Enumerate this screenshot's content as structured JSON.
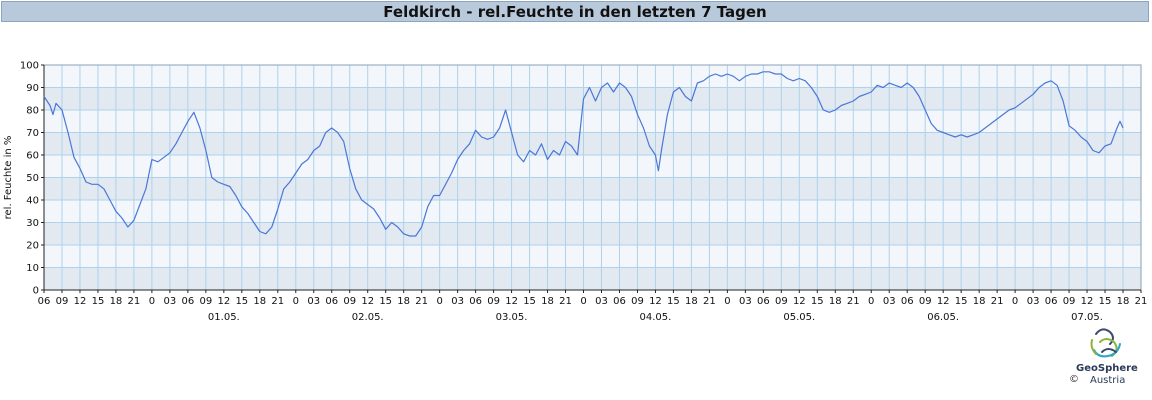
{
  "header": {
    "title": "Feldkirch - rel.Feuchte in den letzten 7 Tagen"
  },
  "branding": {
    "name": "GeoSphere",
    "sub": "Austria",
    "copyright": "©"
  },
  "chart_data": {
    "type": "line",
    "title": "Feldkirch - rel.Feuchte in den letzten 7 Tagen",
    "ylabel": "rel. Feuchte in %",
    "ylim": [
      0,
      100
    ],
    "yticks": [
      0,
      10,
      20,
      30,
      40,
      50,
      60,
      70,
      80,
      90,
      100
    ],
    "x_hours": [
      0,
      3,
      6,
      9,
      12,
      15,
      18,
      21
    ],
    "x_start": "30.04. 06:00",
    "x_end": "07.05. 21:00",
    "day_labels": [
      "01.05.",
      "02.05.",
      "03.05.",
      "04.05.",
      "05.05.",
      "06.05.",
      "07.05."
    ],
    "colors": {
      "line": "#4a78d8",
      "band_dark": "#e3e9f1",
      "band_light": "#f3f6fa",
      "grid": "#aed2ec"
    },
    "grid": true,
    "series": [
      {
        "values": [
          [
            "30.04. 06:00",
            86
          ],
          [
            "30.04. 07:00",
            82
          ],
          [
            "30.04. 07:30",
            78
          ],
          [
            "30.04. 08:00",
            83
          ],
          [
            "30.04. 09:00",
            80
          ],
          [
            "30.04. 10:00",
            70
          ],
          [
            "30.04. 11:00",
            59
          ],
          [
            "30.04. 12:00",
            54
          ],
          [
            "30.04. 13:00",
            48
          ],
          [
            "30.04. 14:00",
            47
          ],
          [
            "30.04. 15:00",
            47
          ],
          [
            "30.04. 16:00",
            45
          ],
          [
            "30.04. 17:00",
            40
          ],
          [
            "30.04. 18:00",
            35
          ],
          [
            "30.04. 19:00",
            32
          ],
          [
            "30.04. 20:00",
            28
          ],
          [
            "30.04. 21:00",
            31
          ],
          [
            "30.04. 22:00",
            38
          ],
          [
            "30.04. 23:00",
            45
          ],
          [
            "01.05. 00:00",
            58
          ],
          [
            "01.05. 01:00",
            57
          ],
          [
            "01.05. 02:00",
            59
          ],
          [
            "01.05. 03:00",
            61
          ],
          [
            "01.05. 04:00",
            65
          ],
          [
            "01.05. 05:00",
            70
          ],
          [
            "01.05. 06:00",
            75
          ],
          [
            "01.05. 07:00",
            79
          ],
          [
            "01.05. 08:00",
            72
          ],
          [
            "01.05. 09:00",
            62
          ],
          [
            "01.05. 10:00",
            50
          ],
          [
            "01.05. 11:00",
            48
          ],
          [
            "01.05. 12:00",
            47
          ],
          [
            "01.05. 13:00",
            46
          ],
          [
            "01.05. 14:00",
            42
          ],
          [
            "01.05. 15:00",
            37
          ],
          [
            "01.05. 16:00",
            34
          ],
          [
            "01.05. 17:00",
            30
          ],
          [
            "01.05. 18:00",
            26
          ],
          [
            "01.05. 19:00",
            25
          ],
          [
            "01.05. 20:00",
            28
          ],
          [
            "01.05. 21:00",
            36
          ],
          [
            "01.05. 22:00",
            45
          ],
          [
            "01.05. 23:00",
            48
          ],
          [
            "02.05. 00:00",
            52
          ],
          [
            "02.05. 01:00",
            56
          ],
          [
            "02.05. 02:00",
            58
          ],
          [
            "02.05. 03:00",
            62
          ],
          [
            "02.05. 04:00",
            64
          ],
          [
            "02.05. 05:00",
            70
          ],
          [
            "02.05. 06:00",
            72
          ],
          [
            "02.05. 07:00",
            70
          ],
          [
            "02.05. 08:00",
            66
          ],
          [
            "02.05. 09:00",
            54
          ],
          [
            "02.05. 10:00",
            45
          ],
          [
            "02.05. 11:00",
            40
          ],
          [
            "02.05. 12:00",
            38
          ],
          [
            "02.05. 13:00",
            36
          ],
          [
            "02.05. 14:00",
            32
          ],
          [
            "02.05. 15:00",
            27
          ],
          [
            "02.05. 16:00",
            30
          ],
          [
            "02.05. 17:00",
            28
          ],
          [
            "02.05. 18:00",
            25
          ],
          [
            "02.05. 19:00",
            24
          ],
          [
            "02.05. 20:00",
            24
          ],
          [
            "02.05. 21:00",
            28
          ],
          [
            "02.05. 22:00",
            37
          ],
          [
            "02.05. 23:00",
            42
          ],
          [
            "03.05. 00:00",
            42
          ],
          [
            "03.05. 01:00",
            47
          ],
          [
            "03.05. 02:00",
            52
          ],
          [
            "03.05. 03:00",
            58
          ],
          [
            "03.05. 04:00",
            62
          ],
          [
            "03.05. 05:00",
            65
          ],
          [
            "03.05. 06:00",
            71
          ],
          [
            "03.05. 07:00",
            68
          ],
          [
            "03.05. 08:00",
            67
          ],
          [
            "03.05. 09:00",
            68
          ],
          [
            "03.05. 10:00",
            72
          ],
          [
            "03.05. 11:00",
            80
          ],
          [
            "03.05. 12:00",
            70
          ],
          [
            "03.05. 13:00",
            60
          ],
          [
            "03.05. 14:00",
            57
          ],
          [
            "03.05. 15:00",
            62
          ],
          [
            "03.05. 16:00",
            60
          ],
          [
            "03.05. 17:00",
            65
          ],
          [
            "03.05. 18:00",
            58
          ],
          [
            "03.05. 19:00",
            62
          ],
          [
            "03.05. 20:00",
            60
          ],
          [
            "03.05. 21:00",
            66
          ],
          [
            "03.05. 22:00",
            64
          ],
          [
            "03.05. 23:00",
            60
          ],
          [
            "04.05. 00:00",
            85
          ],
          [
            "04.05. 01:00",
            90
          ],
          [
            "04.05. 02:00",
            84
          ],
          [
            "04.05. 03:00",
            90
          ],
          [
            "04.05. 04:00",
            92
          ],
          [
            "04.05. 05:00",
            88
          ],
          [
            "04.05. 06:00",
            92
          ],
          [
            "04.05. 07:00",
            90
          ],
          [
            "04.05. 08:00",
            86
          ],
          [
            "04.05. 09:00",
            78
          ],
          [
            "04.05. 10:00",
            72
          ],
          [
            "04.05. 11:00",
            64
          ],
          [
            "04.05. 12:00",
            60
          ],
          [
            "04.05. 12:30",
            53
          ],
          [
            "04.05. 13:00",
            62
          ],
          [
            "04.05. 14:00",
            78
          ],
          [
            "04.05. 15:00",
            88
          ],
          [
            "04.05. 16:00",
            90
          ],
          [
            "04.05. 17:00",
            86
          ],
          [
            "04.05. 18:00",
            84
          ],
          [
            "04.05. 19:00",
            92
          ],
          [
            "04.05. 20:00",
            93
          ],
          [
            "04.05. 21:00",
            95
          ],
          [
            "04.05. 22:00",
            96
          ],
          [
            "04.05. 23:00",
            95
          ],
          [
            "05.05. 00:00",
            96
          ],
          [
            "05.05. 01:00",
            95
          ],
          [
            "05.05. 02:00",
            93
          ],
          [
            "05.05. 03:00",
            95
          ],
          [
            "05.05. 04:00",
            96
          ],
          [
            "05.05. 05:00",
            96
          ],
          [
            "05.05. 06:00",
            97
          ],
          [
            "05.05. 07:00",
            97
          ],
          [
            "05.05. 08:00",
            96
          ],
          [
            "05.05. 09:00",
            96
          ],
          [
            "05.05. 10:00",
            94
          ],
          [
            "05.05. 11:00",
            93
          ],
          [
            "05.05. 12:00",
            94
          ],
          [
            "05.05. 13:00",
            93
          ],
          [
            "05.05. 14:00",
            90
          ],
          [
            "05.05. 15:00",
            86
          ],
          [
            "05.05. 16:00",
            80
          ],
          [
            "05.05. 17:00",
            79
          ],
          [
            "05.05. 18:00",
            80
          ],
          [
            "05.05. 19:00",
            82
          ],
          [
            "05.05. 20:00",
            83
          ],
          [
            "05.05. 21:00",
            84
          ],
          [
            "05.05. 22:00",
            86
          ],
          [
            "05.05. 23:00",
            87
          ],
          [
            "06.05. 00:00",
            88
          ],
          [
            "06.05. 01:00",
            91
          ],
          [
            "06.05. 02:00",
            90
          ],
          [
            "06.05. 03:00",
            92
          ],
          [
            "06.05. 04:00",
            91
          ],
          [
            "06.05. 05:00",
            90
          ],
          [
            "06.05. 06:00",
            92
          ],
          [
            "06.05. 07:00",
            90
          ],
          [
            "06.05. 08:00",
            86
          ],
          [
            "06.05. 09:00",
            80
          ],
          [
            "06.05. 10:00",
            74
          ],
          [
            "06.05. 11:00",
            71
          ],
          [
            "06.05. 12:00",
            70
          ],
          [
            "06.05. 13:00",
            69
          ],
          [
            "06.05. 14:00",
            68
          ],
          [
            "06.05. 15:00",
            69
          ],
          [
            "06.05. 16:00",
            68
          ],
          [
            "06.05. 17:00",
            69
          ],
          [
            "06.05. 18:00",
            70
          ],
          [
            "06.05. 19:00",
            72
          ],
          [
            "06.05. 20:00",
            74
          ],
          [
            "06.05. 21:00",
            76
          ],
          [
            "06.05. 22:00",
            78
          ],
          [
            "06.05. 23:00",
            80
          ],
          [
            "07.05. 00:00",
            81
          ],
          [
            "07.05. 01:00",
            83
          ],
          [
            "07.05. 02:00",
            85
          ],
          [
            "07.05. 03:00",
            87
          ],
          [
            "07.05. 04:00",
            90
          ],
          [
            "07.05. 05:00",
            92
          ],
          [
            "07.05. 06:00",
            93
          ],
          [
            "07.05. 07:00",
            91
          ],
          [
            "07.05. 08:00",
            84
          ],
          [
            "07.05. 09:00",
            73
          ],
          [
            "07.05. 10:00",
            71
          ],
          [
            "07.05. 11:00",
            68
          ],
          [
            "07.05. 12:00",
            66
          ],
          [
            "07.05. 13:00",
            62
          ],
          [
            "07.05. 14:00",
            61
          ],
          [
            "07.05. 15:00",
            64
          ],
          [
            "07.05. 16:00",
            65
          ],
          [
            "07.05. 17:00",
            72
          ],
          [
            "07.05. 17:30",
            75
          ],
          [
            "07.05. 18:00",
            72
          ]
        ]
      }
    ]
  }
}
